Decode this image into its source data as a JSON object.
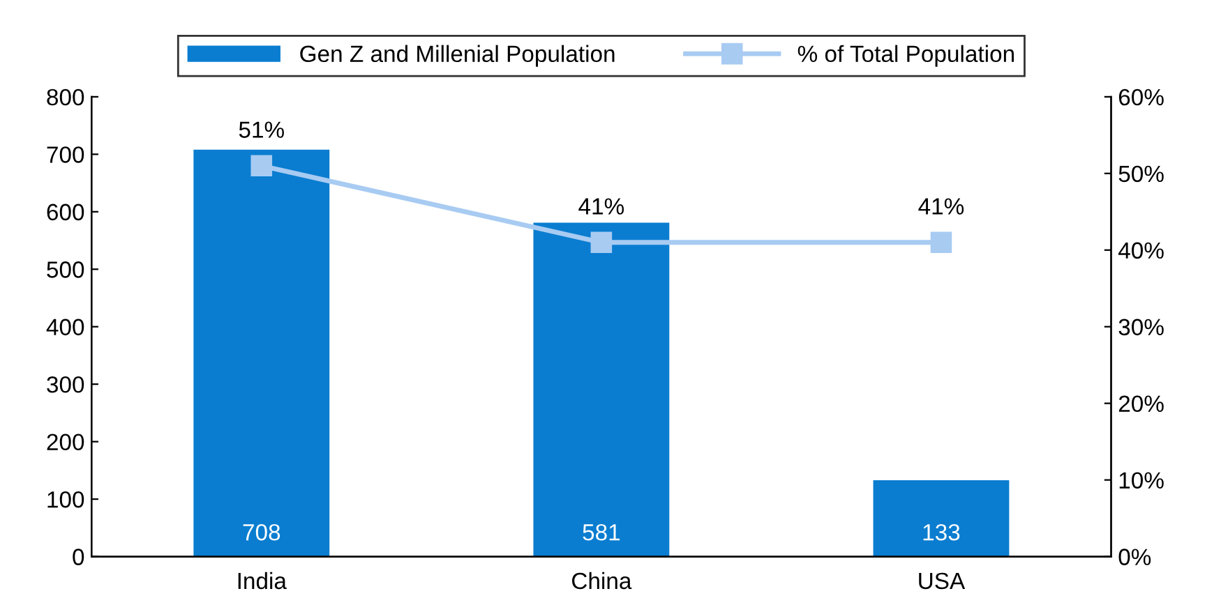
{
  "chart_data": {
    "type": "bar",
    "categories": [
      "India",
      "China",
      "USA"
    ],
    "series": [
      {
        "name": "Gen Z and Millenial Population",
        "color": "#0a7dd0",
        "values": [
          708,
          581,
          133
        ],
        "value_labels": [
          "708",
          "581",
          "133"
        ]
      },
      {
        "name": "% of Total Population",
        "type": "line",
        "axis": "y2",
        "color": "#a8cbf2",
        "marker": "square",
        "values": [
          51,
          41,
          41
        ],
        "value_labels": [
          "51%",
          "41%",
          "41%"
        ]
      }
    ],
    "ylim": [
      0,
      800
    ],
    "yticks": [
      0,
      100,
      200,
      300,
      400,
      500,
      600,
      700,
      800
    ],
    "y2lim": [
      0,
      60
    ],
    "y2ticks": [
      {
        "value": 0,
        "label": "0%"
      },
      {
        "value": 10,
        "label": "10%"
      },
      {
        "value": 20,
        "label": "20%"
      },
      {
        "value": 30,
        "label": "30%"
      },
      {
        "value": 40,
        "label": "40%"
      },
      {
        "value": 50,
        "label": "50%"
      },
      {
        "value": 60,
        "label": "60%"
      }
    ],
    "grid": false,
    "legend": "top"
  }
}
